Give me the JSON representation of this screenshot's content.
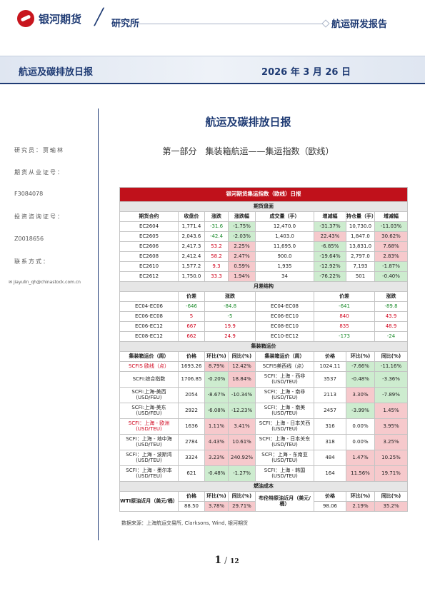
{
  "header": {
    "brand": "银河期货",
    "slash": "╱",
    "institute": "研究所",
    "report_type": "航运研发报告"
  },
  "banner": {
    "left": "航运及碳排放日报",
    "date": "2026 年 3 月 26 日"
  },
  "sidebar": {
    "analyst": "研究员：贾瑜林",
    "qual_label": "期货从业证号：",
    "qual_no": "F3084078",
    "consult_label": "投资咨询证号：",
    "consult_no": "Z0018656",
    "contact_label": "联系方式：",
    "email": "jiayulin_qh@chinastock.com.cn"
  },
  "main": {
    "title": "航运及碳排放日报",
    "subtitle": "第一部分　集装箱航运——集运指数（欧线）"
  },
  "table": {
    "caption": "银河期货集运指数（欧线）日报",
    "futures": {
      "section": "期货盘面",
      "headers": [
        "期货合约",
        "收盘价",
        "涨跌",
        "涨跌幅",
        "成交量（手）",
        "增减幅",
        "持仓量（手）",
        "增减幅"
      ],
      "rows": [
        [
          "EC2604",
          "1,771.4",
          "-31.6",
          "-1.75%",
          "12,470.0",
          "-31.37%",
          "10,730.0",
          "-11.03%"
        ],
        [
          "EC2605",
          "2,043.6",
          "-42.4",
          "-2.03%",
          "1,403.0",
          "22.43%",
          "1,847.0",
          "30.62%"
        ],
        [
          "EC2606",
          "2,417.3",
          "53.2",
          "2.25%",
          "11,695.0",
          "-6.85%",
          "13,831.0",
          "7.68%"
        ],
        [
          "EC2608",
          "2,412.4",
          "58.2",
          "2.47%",
          "900.0",
          "-19.64%",
          "2,797.0",
          "2.83%"
        ],
        [
          "EC2610",
          "1,577.2",
          "9.3",
          "0.59%",
          "1,935",
          "-12.92%",
          "7,193",
          "-1.87%"
        ],
        [
          "EC2612",
          "1,750.0",
          "33.3",
          "1.94%",
          "34",
          "-76.22%",
          "501",
          "-0.40%"
        ]
      ]
    },
    "spread": {
      "section": "月差结构",
      "headers": [
        "价差",
        "涨跌",
        "价差",
        "涨跌"
      ],
      "rows": [
        [
          "EC04-EC06",
          "-646",
          "-84.8",
          "EC04-EC08",
          "-641",
          "-89.8"
        ],
        [
          "EC06-EC08",
          "5",
          "-5",
          "EC06-EC10",
          "840",
          "43.9"
        ],
        [
          "EC06-EC12",
          "667",
          "19.9",
          "EC08-EC10",
          "835",
          "48.9"
        ],
        [
          "EC08-EC12",
          "662",
          "24.9",
          "EC10-EC12",
          "-173",
          "-24"
        ]
      ]
    },
    "freight": {
      "section": "集装箱运价",
      "headers": [
        "集装箱运价（周）",
        "价格",
        "环比(%)",
        "同比(%)",
        "集装箱运价（周）",
        "价格",
        "环比(%)",
        "同比(%)"
      ],
      "rows": [
        [
          "SCFIS 欧线（点）",
          "1693.26",
          "8.79%",
          "12.42%",
          "SCFIS美西线（点）",
          "1024.11",
          "-7.66%",
          "-11.16%"
        ],
        [
          "SCFI:综合指数",
          "1706.85",
          "-0.20%",
          "18.84%",
          "SCFI：上海 - 西非\n(USD/TEU)",
          "3537",
          "-0.48%",
          "-3.36%"
        ],
        [
          "SCFI:上海-美西\n(USD/FEU)",
          "2054",
          "-8.67%",
          "-10.34%",
          "SCFI：上海 - 南非\n(USD/TEU)",
          "2113",
          "3.30%",
          "-7.89%"
        ],
        [
          "SCFI:上海-美东\n(USD/FEU)",
          "2922",
          "-6.08%",
          "-12.23%",
          "SCFI：上海 - 南美\n(USD/TEU)",
          "2457",
          "-3.99%",
          "1.45%"
        ],
        [
          "SCFI：上海 - 欧洲\n(USD/TEU)",
          "1636",
          "1.11%",
          "3.41%",
          "SCFI：上海 - 日本关西\n(USD/TEU)",
          "316",
          "0.00%",
          "3.95%"
        ],
        [
          "SCFI：上海 - 地中海\n(USD/TEU)",
          "2784",
          "4.43%",
          "10.61%",
          "SCFI：上海 - 日本关东\n(USD/TEU)",
          "318",
          "0.00%",
          "3.25%"
        ],
        [
          "SCFI：上海 - 波斯湾\n(USD/TEU)",
          "3324",
          "3.23%",
          "240.92%",
          "SCFI：上海 - 东南亚\n(USD/TEU)",
          "484",
          "1.47%",
          "10.25%"
        ],
        [
          "SCFI：上海 - 墨尔本\n(USD/TEU)",
          "621",
          "-0.48%",
          "-1.27%",
          "SCFI：上海 - 韩国\n(USD/TEU)",
          "164",
          "11.56%",
          "19.71%"
        ]
      ]
    },
    "fuel": {
      "section": "燃油成本",
      "left_label": "WTI原油近月（美元/桶）",
      "right_label": "布伦特原油近月（美元/桶）",
      "headers": [
        "价格",
        "环比(%)",
        "同比(%)"
      ],
      "left_values": [
        "88.50",
        "3.78%",
        "29.71%"
      ],
      "right_values": [
        "98.06",
        "2.19%",
        "35.2%"
      ]
    }
  },
  "source": "数据来源：上海航运交易所, Clarksons, Wind, 银河期货",
  "page": {
    "current": "1",
    "sep": "/",
    "total": "12"
  },
  "colors": {
    "navy": "#1f3b74",
    "red": "#c0111b",
    "up_bg": "#f6c9cc",
    "down_bg": "#cdeccf"
  }
}
